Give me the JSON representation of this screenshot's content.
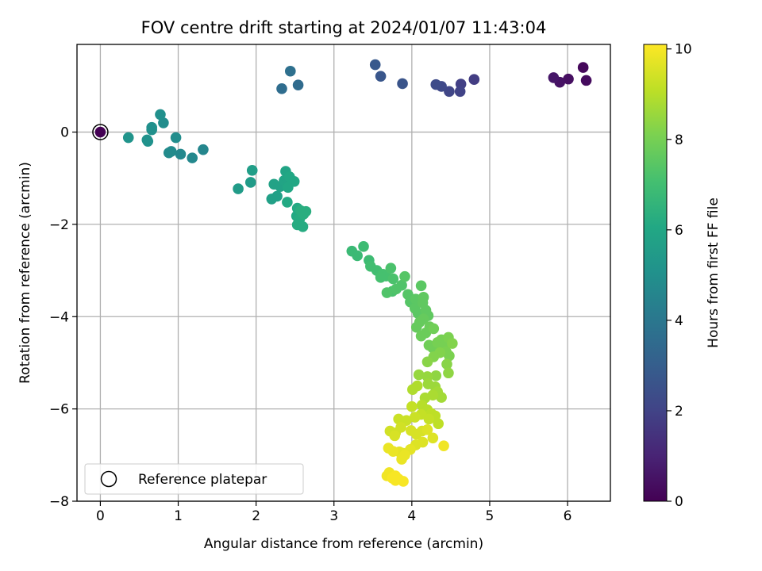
{
  "chart_data": {
    "type": "scatter",
    "title": "FOV centre drift starting at 2024/01/07 11:43:04",
    "xlabel": "Angular distance from reference (arcmin)",
    "ylabel": "Rotation from reference (arcmin)",
    "xlim": [
      -0.3,
      6.55
    ],
    "ylim": [
      -8.0,
      1.9
    ],
    "xticks": [
      0,
      1,
      2,
      3,
      4,
      5,
      6
    ],
    "yticks": [
      -8,
      -6,
      -4,
      -2,
      0
    ],
    "grid": true,
    "legend": {
      "label": "Reference platepar",
      "placement": "lower-left"
    },
    "reference_point": {
      "x": 0,
      "y": 0
    },
    "colorbar": {
      "label": "Hours from first FF file",
      "colormap": "viridis",
      "range": [
        0,
        10.1
      ],
      "ticks": [
        0,
        2,
        4,
        6,
        8,
        10
      ]
    },
    "points": [
      {
        "x": 6.2,
        "y": 1.4,
        "c": 0.2
      },
      {
        "x": 6.24,
        "y": 1.12,
        "c": 0.3
      },
      {
        "x": 6.01,
        "y": 1.15,
        "c": 0.4
      },
      {
        "x": 5.9,
        "y": 1.08,
        "c": 0.5
      },
      {
        "x": 5.82,
        "y": 1.18,
        "c": 0.6
      },
      {
        "x": 4.8,
        "y": 1.14,
        "c": 1.8
      },
      {
        "x": 4.63,
        "y": 1.04,
        "c": 1.9
      },
      {
        "x": 4.62,
        "y": 0.88,
        "c": 2.0
      },
      {
        "x": 4.48,
        "y": 0.88,
        "c": 2.1
      },
      {
        "x": 4.38,
        "y": 0.99,
        "c": 2.2
      },
      {
        "x": 4.31,
        "y": 1.03,
        "c": 2.3
      },
      {
        "x": 3.88,
        "y": 1.05,
        "c": 2.6
      },
      {
        "x": 3.6,
        "y": 1.21,
        "c": 2.7
      },
      {
        "x": 3.53,
        "y": 1.46,
        "c": 2.8
      },
      {
        "x": 2.54,
        "y": 1.02,
        "c": 3.5
      },
      {
        "x": 2.33,
        "y": 0.94,
        "c": 3.6
      },
      {
        "x": 2.44,
        "y": 1.32,
        "c": 3.7
      },
      {
        "x": 1.32,
        "y": -0.38,
        "c": 4.6
      },
      {
        "x": 1.18,
        "y": -0.56,
        "c": 4.7
      },
      {
        "x": 1.03,
        "y": -0.48,
        "c": 4.7
      },
      {
        "x": 0.91,
        "y": -0.42,
        "c": 4.8
      },
      {
        "x": 0.88,
        "y": -0.45,
        "c": 4.8
      },
      {
        "x": 0.97,
        "y": -0.12,
        "c": 4.9
      },
      {
        "x": 0.81,
        "y": 0.2,
        "c": 4.9
      },
      {
        "x": 0.77,
        "y": 0.38,
        "c": 5.0
      },
      {
        "x": 0.66,
        "y": 0.05,
        "c": 5.0
      },
      {
        "x": 0.66,
        "y": 0.1,
        "c": 5.0
      },
      {
        "x": 0.61,
        "y": -0.2,
        "c": 5.1
      },
      {
        "x": 0.6,
        "y": -0.17,
        "c": 5.1
      },
      {
        "x": 0.36,
        "y": -0.12,
        "c": 5.2
      },
      {
        "x": 1.77,
        "y": -1.23,
        "c": 5.5
      },
      {
        "x": 1.93,
        "y": -1.09,
        "c": 5.5
      },
      {
        "x": 1.95,
        "y": -0.83,
        "c": 5.6
      },
      {
        "x": 2.2,
        "y": -1.45,
        "c": 5.7
      },
      {
        "x": 2.27,
        "y": -1.39,
        "c": 5.7
      },
      {
        "x": 2.23,
        "y": -1.13,
        "c": 5.8
      },
      {
        "x": 2.31,
        "y": -1.18,
        "c": 5.8
      },
      {
        "x": 2.36,
        "y": -1.05,
        "c": 5.9
      },
      {
        "x": 2.4,
        "y": -1.01,
        "c": 5.9
      },
      {
        "x": 2.38,
        "y": -0.85,
        "c": 5.9
      },
      {
        "x": 2.43,
        "y": -0.97,
        "c": 6.0
      },
      {
        "x": 2.49,
        "y": -1.07,
        "c": 6.0
      },
      {
        "x": 2.41,
        "y": -1.2,
        "c": 6.0
      },
      {
        "x": 2.4,
        "y": -1.52,
        "c": 6.1
      },
      {
        "x": 2.53,
        "y": -1.65,
        "c": 6.1
      },
      {
        "x": 2.52,
        "y": -1.82,
        "c": 6.1
      },
      {
        "x": 2.56,
        "y": -1.88,
        "c": 6.2
      },
      {
        "x": 2.53,
        "y": -2.01,
        "c": 6.2
      },
      {
        "x": 2.6,
        "y": -2.05,
        "c": 6.2
      },
      {
        "x": 2.61,
        "y": -1.78,
        "c": 6.3
      },
      {
        "x": 2.64,
        "y": -1.72,
        "c": 6.3
      },
      {
        "x": 2.57,
        "y": -1.7,
        "c": 6.3
      },
      {
        "x": 3.23,
        "y": -2.58,
        "c": 6.8
      },
      {
        "x": 3.3,
        "y": -2.68,
        "c": 6.8
      },
      {
        "x": 3.38,
        "y": -2.48,
        "c": 6.9
      },
      {
        "x": 3.45,
        "y": -2.78,
        "c": 6.9
      },
      {
        "x": 3.47,
        "y": -2.91,
        "c": 7.0
      },
      {
        "x": 3.55,
        "y": -3.0,
        "c": 7.0
      },
      {
        "x": 3.63,
        "y": -3.08,
        "c": 7.1
      },
      {
        "x": 3.67,
        "y": -3.12,
        "c": 7.1
      },
      {
        "x": 3.6,
        "y": -3.15,
        "c": 7.1
      },
      {
        "x": 3.73,
        "y": -2.95,
        "c": 7.2
      },
      {
        "x": 3.76,
        "y": -3.18,
        "c": 7.2
      },
      {
        "x": 3.75,
        "y": -3.45,
        "c": 7.2
      },
      {
        "x": 3.68,
        "y": -3.48,
        "c": 7.3
      },
      {
        "x": 3.8,
        "y": -3.4,
        "c": 7.3
      },
      {
        "x": 3.87,
        "y": -3.32,
        "c": 7.3
      },
      {
        "x": 3.91,
        "y": -3.13,
        "c": 7.4
      },
      {
        "x": 3.95,
        "y": -3.52,
        "c": 7.4
      },
      {
        "x": 3.98,
        "y": -3.68,
        "c": 7.4
      },
      {
        "x": 4.05,
        "y": -3.62,
        "c": 7.5
      },
      {
        "x": 4.04,
        "y": -3.82,
        "c": 7.5
      },
      {
        "x": 4.08,
        "y": -3.93,
        "c": 7.5
      },
      {
        "x": 4.12,
        "y": -3.33,
        "c": 7.5
      },
      {
        "x": 4.15,
        "y": -3.58,
        "c": 7.6
      },
      {
        "x": 4.14,
        "y": -3.7,
        "c": 7.6
      },
      {
        "x": 4.18,
        "y": -3.86,
        "c": 7.6
      },
      {
        "x": 4.21,
        "y": -3.98,
        "c": 7.6
      },
      {
        "x": 4.15,
        "y": -4.05,
        "c": 7.7
      },
      {
        "x": 4.1,
        "y": -4.12,
        "c": 7.7
      },
      {
        "x": 4.06,
        "y": -4.23,
        "c": 7.7
      },
      {
        "x": 4.12,
        "y": -4.42,
        "c": 7.8
      },
      {
        "x": 4.18,
        "y": -4.35,
        "c": 7.8
      },
      {
        "x": 4.23,
        "y": -4.22,
        "c": 7.8
      },
      {
        "x": 4.28,
        "y": -4.26,
        "c": 7.9
      },
      {
        "x": 4.22,
        "y": -4.62,
        "c": 7.9
      },
      {
        "x": 4.27,
        "y": -4.68,
        "c": 7.9
      },
      {
        "x": 4.33,
        "y": -4.56,
        "c": 8.0
      },
      {
        "x": 4.38,
        "y": -4.5,
        "c": 8.0
      },
      {
        "x": 4.42,
        "y": -4.62,
        "c": 8.0
      },
      {
        "x": 4.44,
        "y": -4.76,
        "c": 8.1
      },
      {
        "x": 4.48,
        "y": -4.85,
        "c": 8.1
      },
      {
        "x": 4.47,
        "y": -4.45,
        "c": 8.1
      },
      {
        "x": 4.52,
        "y": -4.58,
        "c": 8.2
      },
      {
        "x": 4.36,
        "y": -4.78,
        "c": 8.2
      },
      {
        "x": 4.28,
        "y": -4.87,
        "c": 8.2
      },
      {
        "x": 4.2,
        "y": -4.98,
        "c": 8.3
      },
      {
        "x": 4.45,
        "y": -5.03,
        "c": 8.3
      },
      {
        "x": 4.47,
        "y": -5.22,
        "c": 8.4
      },
      {
        "x": 4.31,
        "y": -5.28,
        "c": 8.4
      },
      {
        "x": 4.2,
        "y": -5.3,
        "c": 8.5
      },
      {
        "x": 4.09,
        "y": -5.26,
        "c": 8.5
      },
      {
        "x": 4.21,
        "y": -5.46,
        "c": 8.6
      },
      {
        "x": 4.3,
        "y": -5.52,
        "c": 8.6
      },
      {
        "x": 4.33,
        "y": -5.63,
        "c": 8.7
      },
      {
        "x": 4.38,
        "y": -5.75,
        "c": 8.7
      },
      {
        "x": 4.27,
        "y": -5.7,
        "c": 8.8
      },
      {
        "x": 4.17,
        "y": -5.76,
        "c": 8.8
      },
      {
        "x": 4.07,
        "y": -5.5,
        "c": 8.9
      },
      {
        "x": 4.01,
        "y": -5.58,
        "c": 8.9
      },
      {
        "x": 4.13,
        "y": -5.92,
        "c": 9.0
      },
      {
        "x": 4.2,
        "y": -6.02,
        "c": 9.0
      },
      {
        "x": 4.25,
        "y": -6.1,
        "c": 9.1
      },
      {
        "x": 4.3,
        "y": -6.15,
        "c": 9.1
      },
      {
        "x": 4.34,
        "y": -6.32,
        "c": 9.1
      },
      {
        "x": 4.22,
        "y": -6.22,
        "c": 9.2
      },
      {
        "x": 4.12,
        "y": -6.12,
        "c": 9.2
      },
      {
        "x": 4.0,
        "y": -5.95,
        "c": 9.2
      },
      {
        "x": 4.04,
        "y": -6.18,
        "c": 9.3
      },
      {
        "x": 3.93,
        "y": -6.25,
        "c": 9.3
      },
      {
        "x": 3.83,
        "y": -6.22,
        "c": 9.3
      },
      {
        "x": 3.86,
        "y": -6.4,
        "c": 9.4
      },
      {
        "x": 3.79,
        "y": -6.52,
        "c": 9.4
      },
      {
        "x": 3.72,
        "y": -6.48,
        "c": 9.4
      },
      {
        "x": 3.78,
        "y": -6.58,
        "c": 9.5
      },
      {
        "x": 3.99,
        "y": -6.47,
        "c": 9.5
      },
      {
        "x": 4.06,
        "y": -6.55,
        "c": 9.5
      },
      {
        "x": 4.13,
        "y": -6.48,
        "c": 9.5
      },
      {
        "x": 4.2,
        "y": -6.45,
        "c": 9.6
      },
      {
        "x": 4.27,
        "y": -6.63,
        "c": 9.6
      },
      {
        "x": 4.14,
        "y": -6.72,
        "c": 9.6
      },
      {
        "x": 4.05,
        "y": -6.78,
        "c": 9.6
      },
      {
        "x": 3.98,
        "y": -6.88,
        "c": 9.7
      },
      {
        "x": 3.89,
        "y": -6.96,
        "c": 9.7
      },
      {
        "x": 3.84,
        "y": -6.93,
        "c": 9.7
      },
      {
        "x": 3.76,
        "y": -6.92,
        "c": 9.8
      },
      {
        "x": 3.7,
        "y": -6.85,
        "c": 9.8
      },
      {
        "x": 3.87,
        "y": -7.09,
        "c": 9.8
      },
      {
        "x": 3.91,
        "y": -7.0,
        "c": 9.8
      },
      {
        "x": 4.41,
        "y": -6.8,
        "c": 9.9
      },
      {
        "x": 3.71,
        "y": -7.38,
        "c": 9.9
      },
      {
        "x": 3.68,
        "y": -7.45,
        "c": 9.9
      },
      {
        "x": 3.79,
        "y": -7.55,
        "c": 10.0
      },
      {
        "x": 3.75,
        "y": -7.5,
        "c": 10.0
      },
      {
        "x": 3.83,
        "y": -7.52,
        "c": 10.0
      },
      {
        "x": 3.89,
        "y": -7.57,
        "c": 10.0
      },
      {
        "x": 3.79,
        "y": -7.45,
        "c": 10.0
      }
    ]
  }
}
